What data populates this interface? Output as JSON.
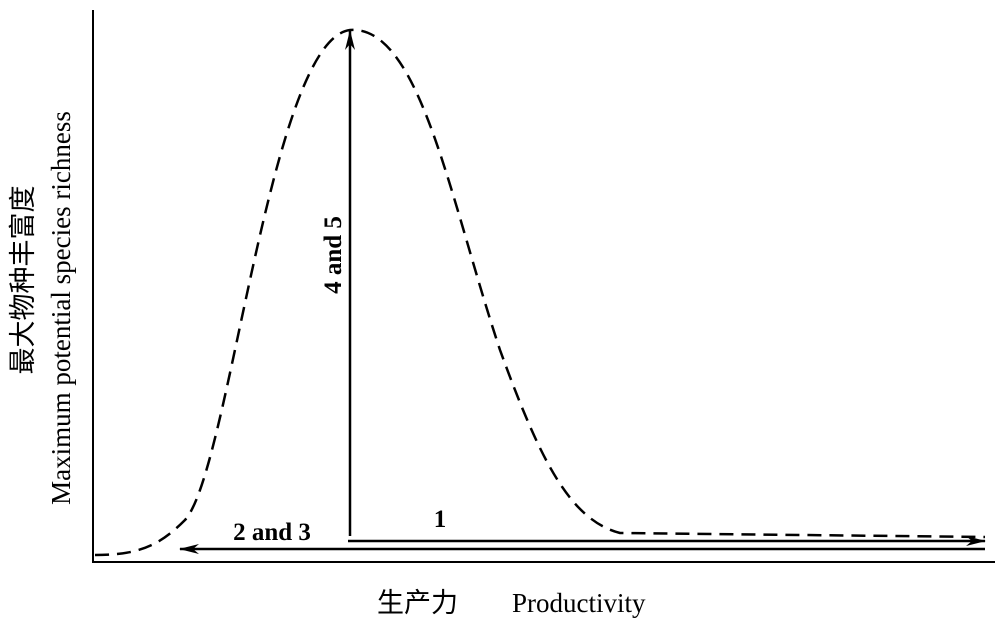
{
  "axes": {
    "y_label_zh": "最大物种丰富度",
    "y_label_en": "Maximum potential species richness",
    "x_label_zh": "生产力",
    "x_label_en": "Productivity"
  },
  "arrows": [
    {
      "label": "1"
    },
    {
      "label": "2 and 3"
    },
    {
      "label": "4 and 5"
    }
  ]
}
